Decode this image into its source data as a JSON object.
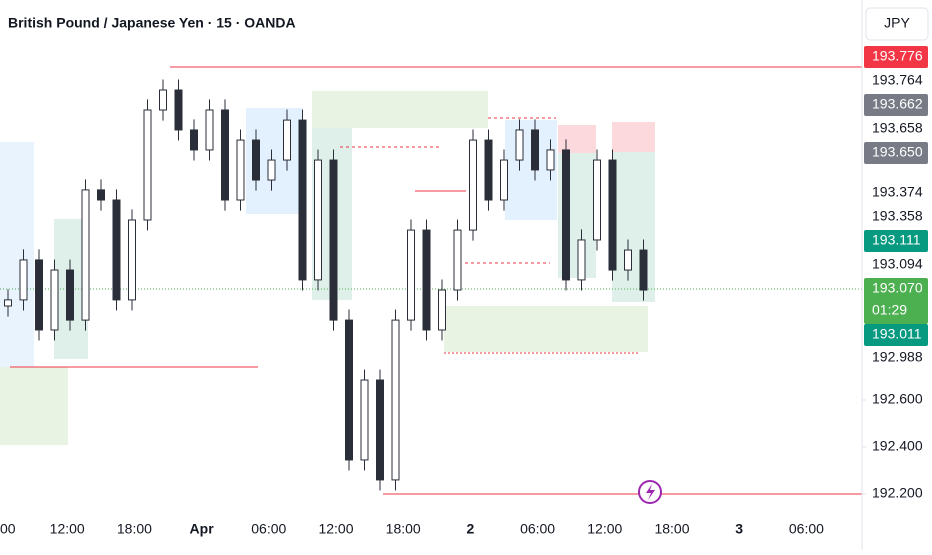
{
  "chart_data": {
    "type": "candlestick",
    "title": "British Pound / Japanese Yen · 15 · OANDA",
    "currency": "JPY",
    "open": [
      193.0,
      193.026,
      193.196,
      192.898,
      193.153,
      192.94,
      193.494,
      193.451,
      193.026,
      193.366,
      193.834,
      193.919,
      193.749,
      193.664,
      193.834,
      193.451,
      193.706,
      193.536,
      193.621,
      193.791,
      193.111,
      193.621,
      192.94,
      192.345,
      192.685,
      192.26,
      192.94,
      193.323,
      192.898,
      193.068,
      193.323,
      193.706,
      193.451,
      193.621,
      193.749,
      193.579,
      193.664,
      193.111,
      193.281,
      193.621,
      193.153,
      193.238
    ],
    "high": [
      193.071,
      193.241,
      193.241,
      193.198,
      193.198,
      193.539,
      193.539,
      193.496,
      193.411,
      193.879,
      193.964,
      193.964,
      193.794,
      193.879,
      193.879,
      193.751,
      193.751,
      193.666,
      193.836,
      193.836,
      193.666,
      193.666,
      192.985,
      192.73,
      192.73,
      192.985,
      193.368,
      193.368,
      193.113,
      193.368,
      193.751,
      193.751,
      193.666,
      193.794,
      193.794,
      193.709,
      193.709,
      193.326,
      193.666,
      193.666,
      193.283,
      193.283
    ],
    "low": [
      192.955,
      192.981,
      192.853,
      192.853,
      192.895,
      192.895,
      193.406,
      192.981,
      192.981,
      193.321,
      193.789,
      193.704,
      193.619,
      193.619,
      193.406,
      193.406,
      193.491,
      193.491,
      193.576,
      193.066,
      193.066,
      192.895,
      192.3,
      192.3,
      192.215,
      192.215,
      192.895,
      192.853,
      192.853,
      193.023,
      193.278,
      193.406,
      193.406,
      193.576,
      193.534,
      193.534,
      193.066,
      193.066,
      193.236,
      193.108,
      193.108,
      193.023
    ],
    "close": [
      193.026,
      193.196,
      192.898,
      193.153,
      192.94,
      193.494,
      193.451,
      193.026,
      193.366,
      193.834,
      193.919,
      193.749,
      193.664,
      193.834,
      193.451,
      193.706,
      193.536,
      193.621,
      193.791,
      193.111,
      193.621,
      192.94,
      192.345,
      192.685,
      192.26,
      192.94,
      193.323,
      192.898,
      193.068,
      193.323,
      193.706,
      193.451,
      193.621,
      193.749,
      193.579,
      193.664,
      193.111,
      193.281,
      193.621,
      193.153,
      193.238,
      193.068
    ],
    "up_color": "#2a2e39",
    "down_color": "#2a2e39",
    "ylim": [
      192.132,
      194.302
    ],
    "yticks": [
      {
        "value": 192.2,
        "label": "192.200"
      },
      {
        "value": 192.4,
        "label": "192.400"
      },
      {
        "value": 192.6,
        "label": "192.600"
      }
    ],
    "time_labels": [
      "00",
      "12:00",
      "18:00",
      "Apr",
      "06:00",
      "12:00",
      "18:00",
      "2",
      "06:00",
      "12:00",
      "18:00",
      "3",
      "06:00"
    ],
    "price_tags": [
      {
        "label": "193.776",
        "color": "#f23645"
      },
      {
        "label": "193.764"
      },
      {
        "label": "193.662",
        "color": "#787b86"
      },
      {
        "label": "193.658"
      },
      {
        "label": "193.650",
        "color": "#787b86"
      },
      {
        "label": "193.374"
      },
      {
        "label": "193.358"
      },
      {
        "label": "193.111",
        "color": "#089981"
      },
      {
        "label": "193.094"
      },
      {
        "label": "193.070",
        "sub": "01:29",
        "color": "#4caf50"
      },
      {
        "label": "193.011",
        "color": "#089981"
      },
      {
        "label": "192.988"
      }
    ]
  }
}
